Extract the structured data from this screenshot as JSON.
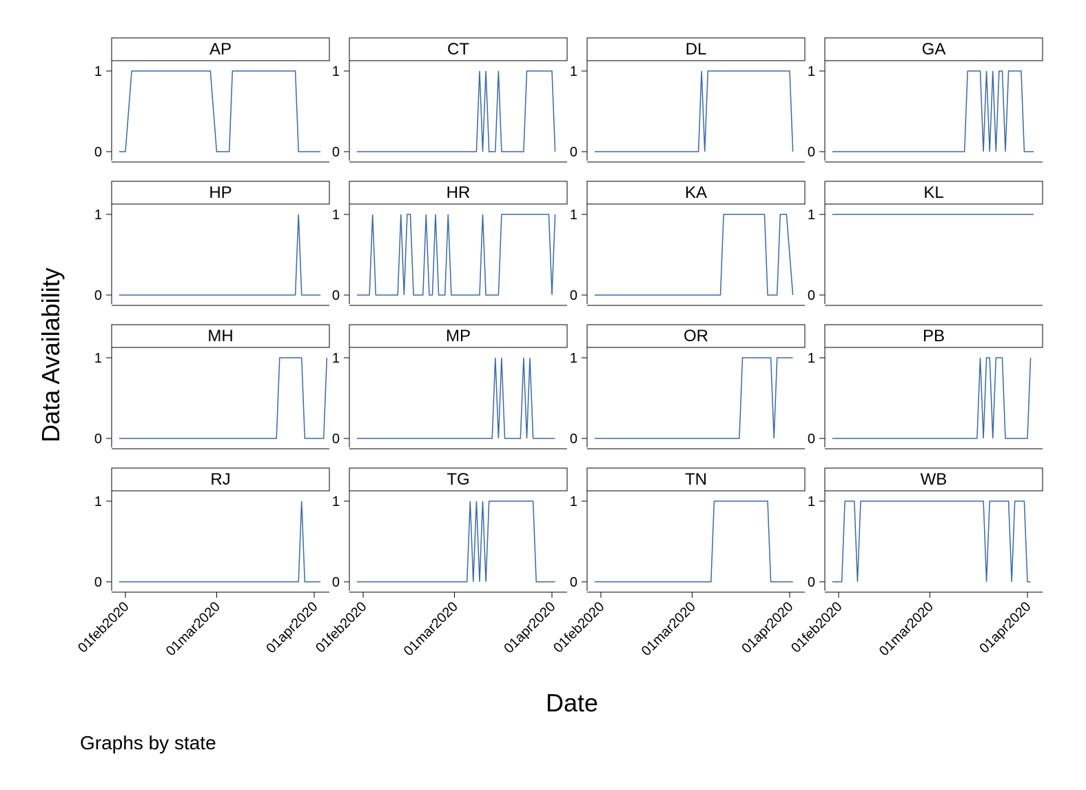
{
  "chart_data": {
    "type": "line",
    "layout": "small-multiples",
    "by_variable_note": "Graphs by state",
    "xlabel": "Date",
    "ylabel": "Data Availability",
    "x_ticks": [
      "01feb2020",
      "01mar2020",
      "01apr2020"
    ],
    "x_tick_dates": [
      "2020-02-01",
      "2020-03-01",
      "2020-04-01"
    ],
    "xlim": [
      "2020-01-30",
      "2020-04-03"
    ],
    "y_ticks": [
      0,
      1
    ],
    "ylim": [
      0,
      1
    ],
    "grid": false,
    "line_color": "#3a6aa8",
    "panels": [
      {
        "name": "AP",
        "points": [
          [
            "2020-01-30",
            0
          ],
          [
            "2020-02-01",
            0
          ],
          [
            "2020-02-03",
            1
          ],
          [
            "2020-02-28",
            1
          ],
          [
            "2020-03-01",
            0
          ],
          [
            "2020-03-05",
            0
          ],
          [
            "2020-03-06",
            1
          ],
          [
            "2020-03-26",
            1
          ],
          [
            "2020-03-27",
            0
          ],
          [
            "2020-04-03",
            0
          ]
        ]
      },
      {
        "name": "CT",
        "points": [
          [
            "2020-01-30",
            0
          ],
          [
            "2020-03-08",
            0
          ],
          [
            "2020-03-09",
            1
          ],
          [
            "2020-03-10",
            0
          ],
          [
            "2020-03-11",
            1
          ],
          [
            "2020-03-12",
            0
          ],
          [
            "2020-03-14",
            0
          ],
          [
            "2020-03-15",
            1
          ],
          [
            "2020-03-16",
            0
          ],
          [
            "2020-03-23",
            0
          ],
          [
            "2020-03-24",
            1
          ],
          [
            "2020-04-01",
            1
          ],
          [
            "2020-04-02",
            0
          ]
        ]
      },
      {
        "name": "DL",
        "points": [
          [
            "2020-01-30",
            0
          ],
          [
            "2020-03-03",
            0
          ],
          [
            "2020-03-04",
            1
          ],
          [
            "2020-03-05",
            0
          ],
          [
            "2020-03-06",
            1
          ],
          [
            "2020-04-01",
            1
          ],
          [
            "2020-04-02",
            0
          ]
        ]
      },
      {
        "name": "GA",
        "points": [
          [
            "2020-01-30",
            0
          ],
          [
            "2020-03-12",
            0
          ],
          [
            "2020-03-13",
            1
          ],
          [
            "2020-03-17",
            1
          ],
          [
            "2020-03-18",
            0
          ],
          [
            "2020-03-19",
            1
          ],
          [
            "2020-03-20",
            0
          ],
          [
            "2020-03-21",
            1
          ],
          [
            "2020-03-22",
            0
          ],
          [
            "2020-03-23",
            1
          ],
          [
            "2020-03-24",
            1
          ],
          [
            "2020-03-25",
            0
          ],
          [
            "2020-03-26",
            1
          ],
          [
            "2020-03-30",
            1
          ],
          [
            "2020-03-31",
            0
          ],
          [
            "2020-04-03",
            0
          ]
        ]
      },
      {
        "name": "HP",
        "points": [
          [
            "2020-01-30",
            0
          ],
          [
            "2020-03-26",
            0
          ],
          [
            "2020-03-27",
            1
          ],
          [
            "2020-03-28",
            0
          ],
          [
            "2020-04-03",
            0
          ]
        ]
      },
      {
        "name": "HR",
        "points": [
          [
            "2020-01-30",
            0
          ],
          [
            "2020-02-03",
            0
          ],
          [
            "2020-02-04",
            1
          ],
          [
            "2020-02-05",
            0
          ],
          [
            "2020-02-12",
            0
          ],
          [
            "2020-02-13",
            1
          ],
          [
            "2020-02-14",
            0
          ],
          [
            "2020-02-15",
            1
          ],
          [
            "2020-02-16",
            1
          ],
          [
            "2020-02-17",
            0
          ],
          [
            "2020-02-20",
            0
          ],
          [
            "2020-02-21",
            1
          ],
          [
            "2020-02-22",
            0
          ],
          [
            "2020-02-23",
            0
          ],
          [
            "2020-02-24",
            1
          ],
          [
            "2020-02-25",
            0
          ],
          [
            "2020-02-27",
            0
          ],
          [
            "2020-02-28",
            1
          ],
          [
            "2020-02-29",
            0
          ],
          [
            "2020-03-09",
            0
          ],
          [
            "2020-03-10",
            1
          ],
          [
            "2020-03-11",
            0
          ],
          [
            "2020-03-15",
            0
          ],
          [
            "2020-03-16",
            1
          ],
          [
            "2020-03-31",
            1
          ],
          [
            "2020-04-01",
            0
          ],
          [
            "2020-04-02",
            1
          ]
        ]
      },
      {
        "name": "KA",
        "points": [
          [
            "2020-01-30",
            0
          ],
          [
            "2020-03-10",
            0
          ],
          [
            "2020-03-11",
            1
          ],
          [
            "2020-03-24",
            1
          ],
          [
            "2020-03-25",
            0
          ],
          [
            "2020-03-28",
            0
          ],
          [
            "2020-03-29",
            1
          ],
          [
            "2020-03-31",
            1
          ],
          [
            "2020-04-02",
            0
          ]
        ]
      },
      {
        "name": "KL",
        "points": [
          [
            "2020-01-30",
            1
          ],
          [
            "2020-04-03",
            1
          ]
        ]
      },
      {
        "name": "MH",
        "points": [
          [
            "2020-01-30",
            0
          ],
          [
            "2020-03-20",
            0
          ],
          [
            "2020-03-21",
            1
          ],
          [
            "2020-03-28",
            1
          ],
          [
            "2020-03-29",
            0
          ],
          [
            "2020-04-04",
            0
          ],
          [
            "2020-04-05",
            1
          ]
        ]
      },
      {
        "name": "MP",
        "points": [
          [
            "2020-01-30",
            0
          ],
          [
            "2020-03-13",
            0
          ],
          [
            "2020-03-14",
            1
          ],
          [
            "2020-03-15",
            0
          ],
          [
            "2020-03-16",
            1
          ],
          [
            "2020-03-17",
            0
          ],
          [
            "2020-03-22",
            0
          ],
          [
            "2020-03-23",
            1
          ],
          [
            "2020-03-24",
            0
          ],
          [
            "2020-03-25",
            1
          ],
          [
            "2020-03-26",
            0
          ],
          [
            "2020-04-02",
            0
          ]
        ]
      },
      {
        "name": "OR",
        "points": [
          [
            "2020-01-30",
            0
          ],
          [
            "2020-03-16",
            0
          ],
          [
            "2020-03-17",
            1
          ],
          [
            "2020-03-26",
            1
          ],
          [
            "2020-03-27",
            0
          ],
          [
            "2020-03-28",
            1
          ],
          [
            "2020-04-02",
            1
          ]
        ]
      },
      {
        "name": "PB",
        "points": [
          [
            "2020-01-30",
            0
          ],
          [
            "2020-03-16",
            0
          ],
          [
            "2020-03-17",
            1
          ],
          [
            "2020-03-18",
            0
          ],
          [
            "2020-03-19",
            1
          ],
          [
            "2020-03-20",
            1
          ],
          [
            "2020-03-21",
            0
          ],
          [
            "2020-03-22",
            1
          ],
          [
            "2020-03-24",
            1
          ],
          [
            "2020-03-25",
            0
          ],
          [
            "2020-04-01",
            0
          ],
          [
            "2020-04-02",
            1
          ]
        ]
      },
      {
        "name": "RJ",
        "points": [
          [
            "2020-01-30",
            0
          ],
          [
            "2020-03-27",
            0
          ],
          [
            "2020-03-28",
            1
          ],
          [
            "2020-03-29",
            0
          ],
          [
            "2020-04-03",
            0
          ]
        ]
      },
      {
        "name": "TG",
        "points": [
          [
            "2020-01-30",
            0
          ],
          [
            "2020-03-05",
            0
          ],
          [
            "2020-03-06",
            1
          ],
          [
            "2020-03-07",
            0
          ],
          [
            "2020-03-08",
            1
          ],
          [
            "2020-03-09",
            0
          ],
          [
            "2020-03-10",
            1
          ],
          [
            "2020-03-11",
            0
          ],
          [
            "2020-03-12",
            1
          ],
          [
            "2020-03-26",
            1
          ],
          [
            "2020-03-27",
            0
          ],
          [
            "2020-04-02",
            0
          ]
        ]
      },
      {
        "name": "TN",
        "points": [
          [
            "2020-01-30",
            0
          ],
          [
            "2020-03-07",
            0
          ],
          [
            "2020-03-08",
            1
          ],
          [
            "2020-03-25",
            1
          ],
          [
            "2020-03-26",
            0
          ],
          [
            "2020-04-02",
            0
          ]
        ]
      },
      {
        "name": "WB",
        "points": [
          [
            "2020-01-30",
            0
          ],
          [
            "2020-02-02",
            0
          ],
          [
            "2020-02-03",
            1
          ],
          [
            "2020-02-06",
            1
          ],
          [
            "2020-02-07",
            0
          ],
          [
            "2020-02-08",
            1
          ],
          [
            "2020-03-18",
            1
          ],
          [
            "2020-03-19",
            0
          ],
          [
            "2020-03-20",
            1
          ],
          [
            "2020-03-26",
            1
          ],
          [
            "2020-03-27",
            0
          ],
          [
            "2020-03-28",
            1
          ],
          [
            "2020-03-31",
            1
          ],
          [
            "2020-04-01",
            0
          ],
          [
            "2020-04-02",
            0
          ]
        ]
      }
    ]
  }
}
